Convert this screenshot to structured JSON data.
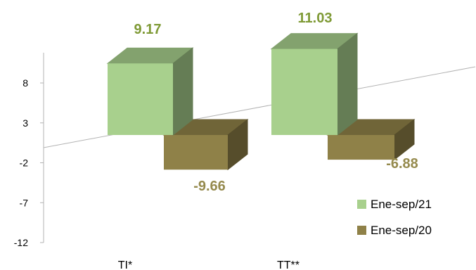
{
  "chart_data": {
    "type": "bar",
    "categories": [
      "TI*",
      "TT**"
    ],
    "series": [
      {
        "name": "Ene-sep/21",
        "values": [
          9.17,
          11.03
        ],
        "labels": [
          "9.17",
          "11.03"
        ],
        "color": "#a8d08d",
        "label_color": "#7f9a36"
      },
      {
        "name": "Ene-sep/20",
        "values": [
          -9.66,
          -6.88
        ],
        "labels": [
          "-9.66",
          "-6.88"
        ],
        "color": "#8f8148",
        "label_color": "#958a4d"
      }
    ],
    "yticks": [
      "8",
      "3",
      "-2",
      "-7",
      "-12"
    ],
    "ylim": [
      -12,
      13
    ],
    "grid": false,
    "legend_position": "bottom-right",
    "style": "3d"
  }
}
